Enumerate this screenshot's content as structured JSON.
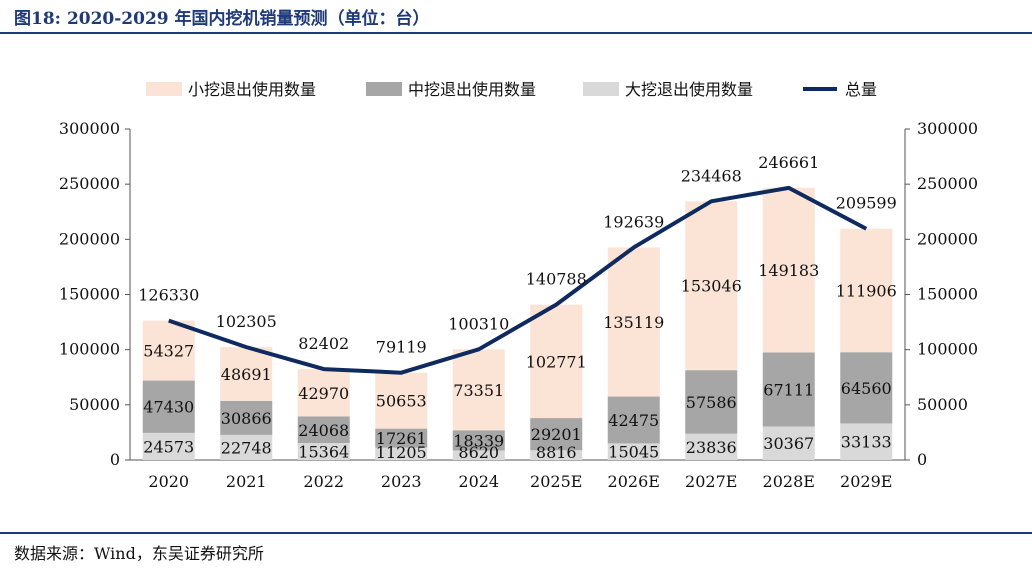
{
  "figure": {
    "number": "图18:",
    "title": "2020-2029 年国内挖机销量预测（单位：台）",
    "source": "数据来源：Wind，东吴证券研究所"
  },
  "colors": {
    "small": "#fbe4d5",
    "medium": "#a6a6a6",
    "large": "#d9d9d9",
    "total": "#0f2a5e",
    "accent": "#1f3a7a"
  },
  "chart_data": {
    "type": "bar",
    "stacked": true,
    "categories": [
      "2020",
      "2021",
      "2022",
      "2023",
      "2024",
      "2025E",
      "2026E",
      "2027E",
      "2028E",
      "2029E"
    ],
    "series": [
      {
        "name": "大挖退出使用数量",
        "type": "bar",
        "values": [
          24573,
          22748,
          15364,
          11205,
          8620,
          8816,
          15045,
          23836,
          30367,
          33133
        ]
      },
      {
        "name": "中挖退出使用数量",
        "type": "bar",
        "values": [
          47430,
          30866,
          24068,
          17261,
          18339,
          29201,
          42475,
          57586,
          67111,
          64560
        ]
      },
      {
        "name": "小挖退出使用数量",
        "type": "bar",
        "values": [
          54327,
          48691,
          42970,
          50653,
          73351,
          102771,
          135119,
          153046,
          149183,
          111906
        ]
      },
      {
        "name": "总量",
        "type": "line",
        "values": [
          126330,
          102305,
          82402,
          79119,
          100310,
          140788,
          192639,
          234468,
          246661,
          209599
        ]
      }
    ],
    "legend_order": [
      "小挖退出使用数量",
      "中挖退出使用数量",
      "大挖退出使用数量",
      "总量"
    ],
    "y_ticks": [
      "0",
      "50000",
      "100000",
      "150000",
      "200000",
      "250000",
      "300000"
    ],
    "ylim": [
      0,
      300000
    ],
    "y2lim": [
      0,
      300000
    ],
    "legend_position": "top",
    "grid": false
  }
}
